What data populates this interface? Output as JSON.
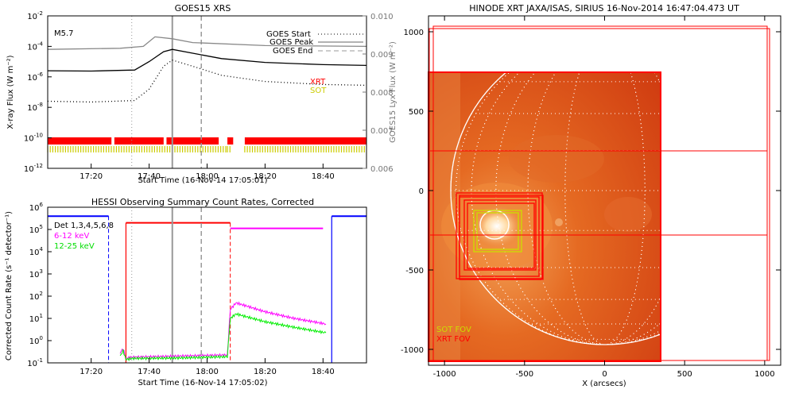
{
  "chart_data": [
    {
      "type": "line",
      "title": "GOES15 XRS",
      "xlabel": "Start Time (16-Nov-14 17:05:01)",
      "ylabel": "X-ray Flux (W m⁻²)",
      "ylabel_right": "GOES15 Lyx Flux (W m⁻²)",
      "ylim_log_exponents": [
        -12,
        -2
      ],
      "yticks_exponents": [
        -12,
        -10,
        -8,
        -6,
        -4,
        -2
      ],
      "yticks_right": [
        "0.006",
        "0.007",
        "0.008",
        "0.009",
        "0.010"
      ],
      "xticks": [
        "17:20",
        "17:40",
        "18:00",
        "18:20",
        "18:40"
      ],
      "annotation": "M5.7",
      "legend": [
        "GOES Start",
        "GOES Peak",
        "GOES End"
      ],
      "markers": {
        "goes_start": "17:34",
        "goes_peak": "17:48",
        "goes_end": "17:58"
      },
      "series": [
        {
          "name": "",
          "style": "solid",
          "color": "#000000",
          "x": [
            "17:05",
            "17:20",
            "17:35",
            "17:40",
            "17:45",
            "17:48",
            "17:55",
            "18:05",
            "18:20",
            "18:40",
            "18:55"
          ],
          "log_y": [
            -5.6,
            -5.62,
            -5.55,
            -5.0,
            -4.35,
            -4.2,
            -4.45,
            -4.8,
            -5.05,
            -5.2,
            -5.25
          ]
        },
        {
          "name": "",
          "style": "dotted",
          "color": "#000000",
          "x": [
            "17:05",
            "17:20",
            "17:35",
            "17:40",
            "17:45",
            "17:48",
            "17:55",
            "18:05",
            "18:20",
            "18:40",
            "18:55"
          ],
          "log_y": [
            -7.6,
            -7.65,
            -7.55,
            -6.8,
            -5.3,
            -4.9,
            -5.3,
            -5.9,
            -6.3,
            -6.5,
            -6.55
          ]
        },
        {
          "name": "",
          "style": "solid",
          "color": "#888888",
          "axis": "right",
          "x": [
            "17:05",
            "17:30",
            "17:38",
            "17:42",
            "17:48",
            "17:55",
            "18:20",
            "18:55"
          ],
          "y": [
            0.00912,
            0.00915,
            0.0092,
            0.00945,
            0.0094,
            0.0093,
            0.00922,
            0.0092
          ]
        }
      ],
      "coverage_bars": [
        {
          "name": "XRT",
          "color": "#ff0000",
          "intervals": [
            [
              "17:05",
              "17:27"
            ],
            [
              "17:28",
              "17:45"
            ],
            [
              "17:46",
              "18:04"
            ],
            [
              "18:07",
              "18:09"
            ],
            [
              "18:13",
              "18:55"
            ]
          ]
        },
        {
          "name": "SOT",
          "color": "#cccc00",
          "intervals": [
            [
              "17:05",
              "18:07"
            ],
            [
              "18:07",
              "18:08"
            ],
            [
              "18:13",
              "18:55"
            ]
          ]
        }
      ]
    },
    {
      "type": "line",
      "title": "HESSI Observing Summary Count Rates, Corrected",
      "xlabel": "Start Time (16-Nov-14 17:05:02)",
      "ylabel": "Corrected Count Rate (s⁻¹ detector⁻¹)",
      "ylim_log_exponents": [
        -1,
        6
      ],
      "yticks_exponents": [
        -1,
        0,
        1,
        2,
        3,
        4,
        5,
        6
      ],
      "xticks": [
        "17:20",
        "17:40",
        "18:00",
        "18:20",
        "18:40"
      ],
      "legend": [
        "Det 1,3,4,5,6,8",
        "6-12 keV",
        "12-25 keV"
      ],
      "series": [
        {
          "name": "6-12 keV",
          "color": "#ff00ff",
          "x": [
            "17:30",
            "17:31",
            "17:32",
            "17:34",
            "17:50",
            "18:07",
            "18:08",
            "18:10",
            "18:20",
            "18:30",
            "18:41"
          ],
          "log_y": [
            -0.55,
            -0.35,
            -0.8,
            -0.75,
            -0.7,
            -0.65,
            1.4,
            1.7,
            1.3,
            1.0,
            0.75
          ]
        },
        {
          "name": "12-25 keV",
          "color": "#00ee00",
          "x": [
            "17:30",
            "17:31",
            "17:32",
            "17:34",
            "17:50",
            "18:07",
            "18:08",
            "18:10",
            "18:20",
            "18:30",
            "18:41"
          ],
          "log_y": [
            -0.7,
            -0.45,
            -0.85,
            -0.8,
            -0.78,
            -0.72,
            1.0,
            1.2,
            0.85,
            0.6,
            0.35
          ]
        }
      ],
      "markers": {
        "night_end_blue_dashed": "17:26",
        "night_start_blue_solid": "18:43",
        "saa_red_solid": "17:32",
        "red_dashed": "18:08"
      },
      "state_lines": [
        {
          "color": "#0000ff",
          "intervals": [
            [
              "17:05",
              "17:26"
            ],
            [
              "18:43",
              "18:55"
            ]
          ],
          "log_y": 5.6
        },
        {
          "color": "#ff0000",
          "intervals": [
            [
              "17:32",
              "18:08"
            ]
          ],
          "log_y": 5.3
        },
        {
          "color": "#ff00ff",
          "intervals": [
            [
              "18:08",
              "18:40"
            ]
          ],
          "log_y": 5.05
        }
      ]
    },
    {
      "type": "heatmap",
      "title": "HINODE XRT JAXA/ISAS, SIRIUS 16-Nov-2014 16:47:04.473 UT",
      "xlabel": "X (arcsecs)",
      "ylabel": "",
      "xlim": [
        -1100,
        1100
      ],
      "ylim": [
        -1100,
        1100
      ],
      "xticks": [
        "-1000",
        "-500",
        "0",
        "500",
        "1000"
      ],
      "yticks": [
        "1000",
        "500",
        "0",
        "-500",
        "-1000"
      ],
      "fov_labels": [
        "SOT FOV",
        "XRT FOV"
      ],
      "colors": {
        "sot": "#ccdd00",
        "xrt": "#ff0000",
        "image": "#d94a14"
      }
    }
  ],
  "panel1": {
    "title": "GOES15 XRS",
    "xlabel": "Start Time (16-Nov-14 17:05:01)",
    "ylabel_left": "X-ray Flux (W m⁻²)",
    "ylabel_right": "GOES15 Lyx Flux (W m⁻²)",
    "class_label": "M5.7",
    "legend_start": "GOES Start",
    "legend_peak": "GOES Peak",
    "legend_end": "GOES End",
    "xrt_label": "XRT",
    "sot_label": "SOT",
    "ytick_base": "10",
    "yticks_exp": [
      "-2",
      "-4",
      "-6",
      "-8",
      "-10",
      "-12"
    ],
    "yticks_right": [
      "0.010",
      "0.009",
      "0.008",
      "0.007",
      "0.006"
    ],
    "xticks": [
      "17:20",
      "17:40",
      "18:00",
      "18:20",
      "18:40"
    ]
  },
  "panel2": {
    "title": "HESSI Observing Summary Count Rates, Corrected",
    "xlabel": "Start Time (16-Nov-14 17:05:02)",
    "ylabel": "Corrected Count Rate (s⁻¹ detector⁻¹)",
    "legend_det": "Det 1,3,4,5,6,8",
    "legend_low": "6-12 keV",
    "legend_high": "12-25 keV",
    "ytick_base": "10",
    "yticks_exp": [
      "6",
      "5",
      "4",
      "3",
      "2",
      "1",
      "0",
      "-1"
    ],
    "xticks": [
      "17:20",
      "17:40",
      "18:00",
      "18:20",
      "18:40"
    ]
  },
  "panel3": {
    "title": "HINODE XRT JAXA/ISAS, SIRIUS 16-Nov-2014 16:47:04.473 UT",
    "xlabel": "X (arcsecs)",
    "yticks": [
      "1000",
      "500",
      "0",
      "-500",
      "-1000"
    ],
    "xticks": [
      "-1000",
      "-500",
      "0",
      "500",
      "1000"
    ],
    "sot_fov": "SOT FOV",
    "xrt_fov": "XRT FOV"
  }
}
